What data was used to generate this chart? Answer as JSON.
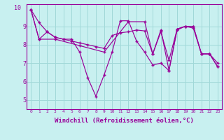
{
  "background_color": "#c8f0f0",
  "grid_color": "#a0d8d8",
  "line_color": "#990099",
  "marker": "+",
  "xlabel": "Windchill (Refroidissement éolien,°C)",
  "xlabel_fontsize": 6.5,
  "xlim": [
    -0.5,
    23.5
  ],
  "ylim": [
    4.5,
    10.2
  ],
  "yticks": [
    5,
    6,
    7,
    8,
    9
  ],
  "xticks": [
    0,
    1,
    2,
    3,
    4,
    5,
    6,
    7,
    8,
    9,
    10,
    11,
    12,
    13,
    14,
    15,
    16,
    17,
    18,
    19,
    20,
    21,
    22,
    23
  ],
  "series1_x": [
    0,
    1,
    2,
    3,
    4,
    5,
    6,
    7,
    8,
    9,
    10,
    11,
    12,
    13,
    14,
    15,
    16,
    17,
    18,
    19,
    20,
    21,
    22,
    23
  ],
  "series1_y": [
    9.9,
    9.2,
    8.7,
    8.4,
    8.3,
    8.3,
    7.6,
    6.2,
    5.2,
    6.35,
    7.6,
    9.3,
    9.3,
    8.2,
    7.6,
    6.9,
    7.0,
    6.6,
    8.85,
    9.0,
    9.0,
    7.5,
    7.5,
    6.8
  ],
  "series2_x": [
    0,
    1,
    2,
    3,
    4,
    5,
    6,
    7,
    8,
    9,
    10,
    11,
    12,
    13,
    14,
    15,
    16,
    17,
    18,
    19,
    20,
    21,
    22,
    23
  ],
  "series2_y": [
    9.9,
    8.3,
    8.7,
    8.4,
    8.3,
    8.2,
    8.1,
    8.0,
    7.9,
    7.8,
    8.5,
    8.65,
    8.7,
    8.8,
    8.75,
    7.5,
    8.7,
    7.15,
    8.85,
    9.0,
    8.9,
    7.5,
    7.5,
    7.0
  ],
  "series3_x": [
    0,
    1,
    3,
    6,
    9,
    12,
    14,
    15,
    16,
    17,
    18,
    19,
    20,
    21,
    22,
    23
  ],
  "series3_y": [
    9.9,
    8.3,
    8.3,
    7.95,
    7.6,
    9.25,
    9.25,
    7.5,
    8.8,
    6.6,
    8.8,
    9.0,
    9.0,
    7.5,
    7.5,
    6.8
  ]
}
